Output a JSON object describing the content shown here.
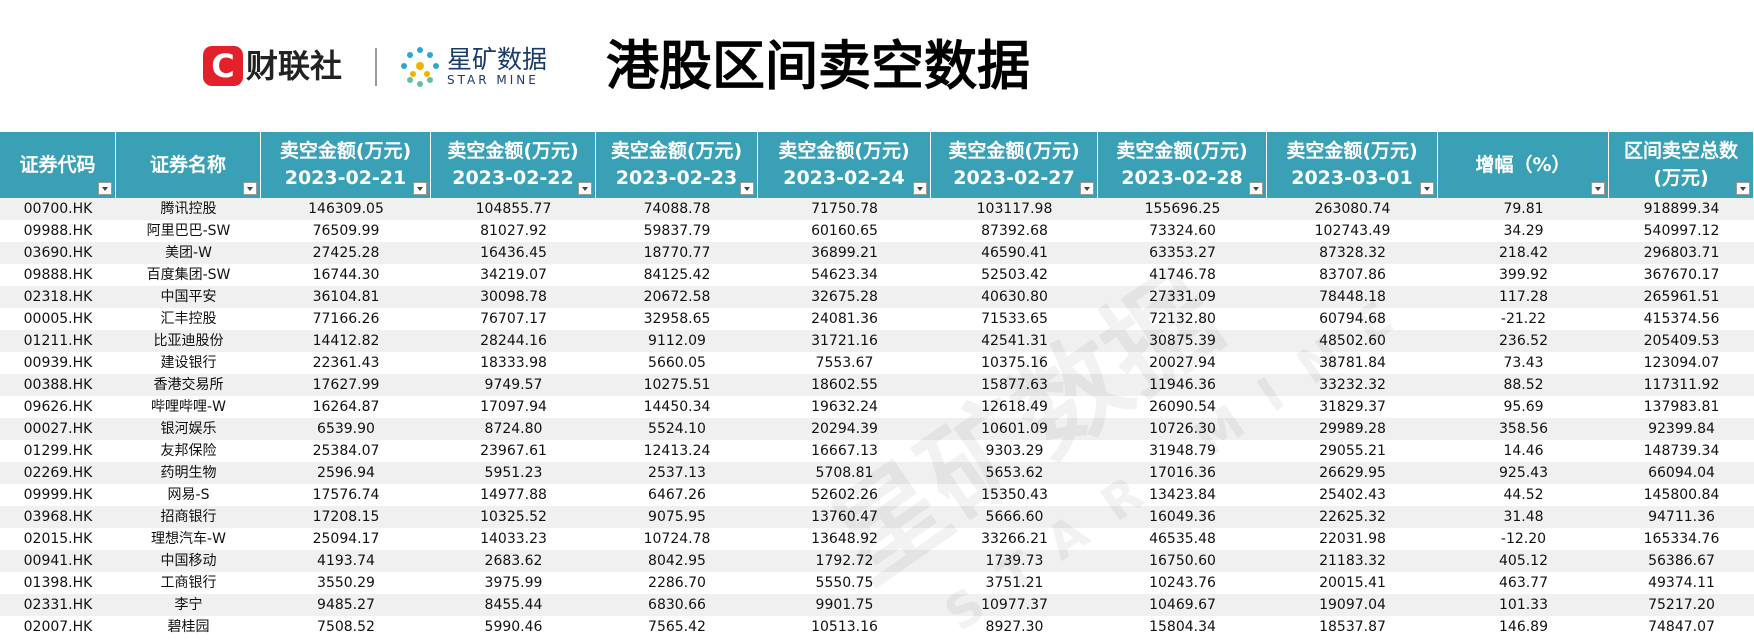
{
  "header": {
    "brand": "财联社",
    "brand_icon": "C",
    "partner": "星矿数据",
    "partner_en": "STAR MINE",
    "title": "港股区间卖空数据"
  },
  "watermark": {
    "text": "星矿数据",
    "text_en": "STAR MINE"
  },
  "table": {
    "header": [
      [
        "证券代码"
      ],
      [
        "证券名称"
      ],
      [
        "卖空金额(万元)",
        "2023-02-21"
      ],
      [
        "卖空金额(万元)",
        "2023-02-22"
      ],
      [
        "卖空金额(万元)",
        "2023-02-23"
      ],
      [
        "卖空金额(万元)",
        "2023-02-24"
      ],
      [
        "卖空金额(万元)",
        "2023-02-27"
      ],
      [
        "卖空金额(万元)",
        "2023-02-28"
      ],
      [
        "卖空金额(万元)",
        "2023-03-01"
      ],
      [
        "增幅（%）"
      ],
      [
        "区间卖空总数",
        "(万元)"
      ]
    ],
    "rows": [
      [
        "00700.HK",
        "腾讯控股",
        "146309.05",
        "104855.77",
        "74088.78",
        "71750.78",
        "103117.98",
        "155696.25",
        "263080.74",
        "79.81",
        "918899.34"
      ],
      [
        "09988.HK",
        "阿里巴巴-SW",
        "76509.99",
        "81027.92",
        "59837.79",
        "60160.65",
        "87392.68",
        "73324.60",
        "102743.49",
        "34.29",
        "540997.12"
      ],
      [
        "03690.HK",
        "美团-W",
        "27425.28",
        "16436.45",
        "18770.77",
        "36899.21",
        "46590.41",
        "63353.27",
        "87328.32",
        "218.42",
        "296803.71"
      ],
      [
        "09888.HK",
        "百度集团-SW",
        "16744.30",
        "34219.07",
        "84125.42",
        "54623.34",
        "52503.42",
        "41746.78",
        "83707.86",
        "399.92",
        "367670.17"
      ],
      [
        "02318.HK",
        "中国平安",
        "36104.81",
        "30098.78",
        "20672.58",
        "32675.28",
        "40630.80",
        "27331.09",
        "78448.18",
        "117.28",
        "265961.51"
      ],
      [
        "00005.HK",
        "汇丰控股",
        "77166.26",
        "76707.17",
        "32958.65",
        "24081.36",
        "71533.65",
        "72132.80",
        "60794.68",
        "-21.22",
        "415374.56"
      ],
      [
        "01211.HK",
        "比亚迪股份",
        "14412.82",
        "28244.16",
        "9112.09",
        "31721.16",
        "42541.31",
        "30875.39",
        "48502.60",
        "236.52",
        "205409.53"
      ],
      [
        "00939.HK",
        "建设银行",
        "22361.43",
        "18333.98",
        "5660.05",
        "7553.67",
        "10375.16",
        "20027.94",
        "38781.84",
        "73.43",
        "123094.07"
      ],
      [
        "00388.HK",
        "香港交易所",
        "17627.99",
        "9749.57",
        "10275.51",
        "18602.55",
        "15877.63",
        "11946.36",
        "33232.32",
        "88.52",
        "117311.92"
      ],
      [
        "09626.HK",
        "哔哩哔哩-W",
        "16264.87",
        "17097.94",
        "14450.34",
        "19632.24",
        "12618.49",
        "26090.54",
        "31829.37",
        "95.69",
        "137983.81"
      ],
      [
        "00027.HK",
        "银河娱乐",
        "6539.90",
        "8724.80",
        "5524.10",
        "20294.39",
        "10601.09",
        "10726.30",
        "29989.28",
        "358.56",
        "92399.84"
      ],
      [
        "01299.HK",
        "友邦保险",
        "25384.07",
        "23967.61",
        "12413.24",
        "16667.13",
        "9303.29",
        "31948.79",
        "29055.21",
        "14.46",
        "148739.34"
      ],
      [
        "02269.HK",
        "药明生物",
        "2596.94",
        "5951.23",
        "2537.13",
        "5708.81",
        "5653.62",
        "17016.36",
        "26629.95",
        "925.43",
        "66094.04"
      ],
      [
        "09999.HK",
        "网易-S",
        "17576.74",
        "14977.88",
        "6467.26",
        "52602.26",
        "15350.43",
        "13423.84",
        "25402.43",
        "44.52",
        "145800.84"
      ],
      [
        "03968.HK",
        "招商银行",
        "17208.15",
        "10325.52",
        "9075.95",
        "13760.47",
        "5666.60",
        "16049.36",
        "22625.32",
        "31.48",
        "94711.36"
      ],
      [
        "02015.HK",
        "理想汽车-W",
        "25094.17",
        "14033.23",
        "10724.78",
        "13648.92",
        "33266.21",
        "46535.48",
        "22031.98",
        "-12.20",
        "165334.76"
      ],
      [
        "00941.HK",
        "中国移动",
        "4193.74",
        "2683.62",
        "8042.95",
        "1792.72",
        "1739.73",
        "16750.60",
        "21183.32",
        "405.12",
        "56386.67"
      ],
      [
        "01398.HK",
        "工商银行",
        "3550.29",
        "3975.99",
        "2286.70",
        "5550.75",
        "3751.21",
        "10243.76",
        "20015.41",
        "463.77",
        "49374.11"
      ],
      [
        "02331.HK",
        "李宁",
        "9485.27",
        "8455.44",
        "6830.66",
        "9901.75",
        "10977.37",
        "10469.67",
        "19097.04",
        "101.33",
        "75217.20"
      ],
      [
        "02007.HK",
        "碧桂园",
        "7508.52",
        "5990.46",
        "7565.42",
        "10513.16",
        "8927.30",
        "15804.34",
        "18537.87",
        "146.89",
        "74847.07"
      ]
    ]
  }
}
